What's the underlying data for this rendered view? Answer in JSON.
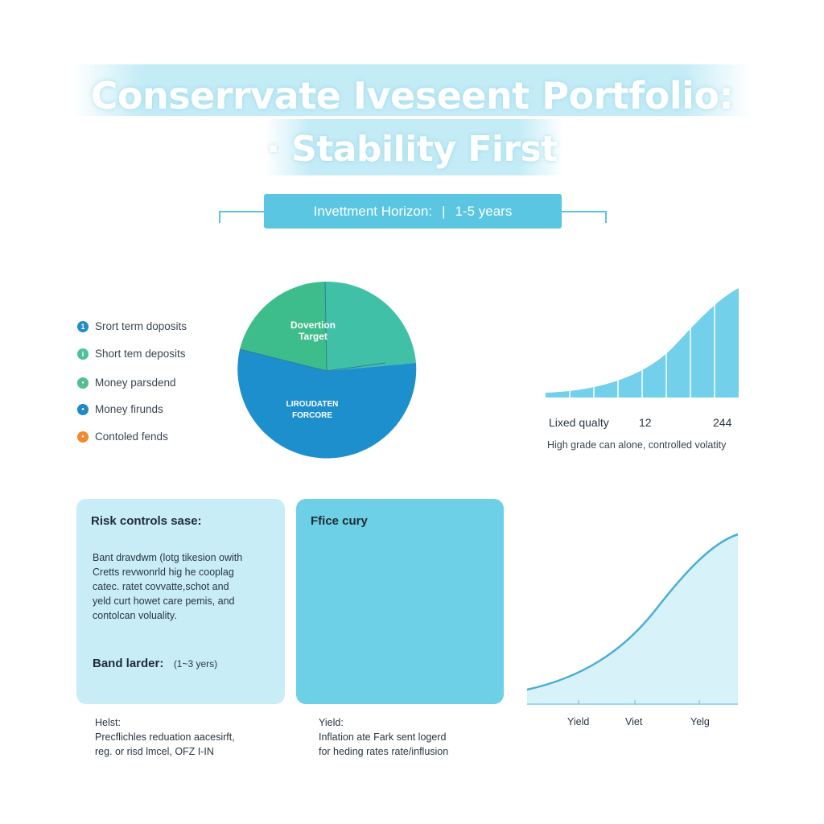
{
  "title": {
    "line1": "Conserrvate Iveseent Portfolio:",
    "line2": "· Stability First"
  },
  "horizon": {
    "label": "Invettment Horizon:",
    "separator": "|",
    "value": "1-5 years"
  },
  "legend": [
    {
      "label": "Srort term doposits",
      "color": "#1f8fc6",
      "marker": "1"
    },
    {
      "label": "Short tem deposits",
      "color": "#4cc39a",
      "marker": "i"
    },
    {
      "label": "Money parsdend",
      "color": "#52bf8f",
      "marker": "●"
    },
    {
      "label": "Money firunds",
      "color": "#1e88c8",
      "marker": "●"
    },
    {
      "label": "Contoled fends",
      "color": "#f28a2e",
      "marker": "●"
    }
  ],
  "pie": {
    "label_top": [
      "Dovertion",
      "Target"
    ],
    "label_bottom": [
      "LIROUDATEN",
      "FORCORE"
    ],
    "colors": {
      "green": "#3ebd8c",
      "teal": "#41c0a8",
      "blue": "#1e8fcd",
      "line": "#2f7e9b"
    }
  },
  "area_chart": {
    "label_left": "Lixed qualty",
    "label_mid": "12",
    "label_right": "244",
    "caption": "High grade can alone, controlled volatity",
    "color": "#72d0ea"
  },
  "cards": {
    "risk": {
      "title": "Risk controls sase:",
      "body": [
        "Bant dravdwm (lotg tikesion owith",
        "Cretts revwonrld hig he cooplag",
        "catec. ratet covvatte,schot and",
        "yeld curt howet care pemis, and",
        "contolcan voluality."
      ],
      "ladder_label": "Band larder:",
      "ladder_value": "(1~3 yers)"
    },
    "price": {
      "title": "Ffice cury"
    }
  },
  "yield_chart": {
    "ticks": [
      "Yield",
      "Viet",
      "Yelg"
    ],
    "line_color": "#4aaed4",
    "fill_color": "#d8f2fa"
  },
  "notes": {
    "left": {
      "heading": "Helst:",
      "lines": [
        "Precflichles reduation aacesirft,",
        "reg. or risd lmcel, OFZ I-IN"
      ]
    },
    "right": {
      "heading": "Yield:",
      "lines": [
        "Inflation ate Fark sent logerd",
        "for heding rates rate/influsion"
      ]
    }
  }
}
